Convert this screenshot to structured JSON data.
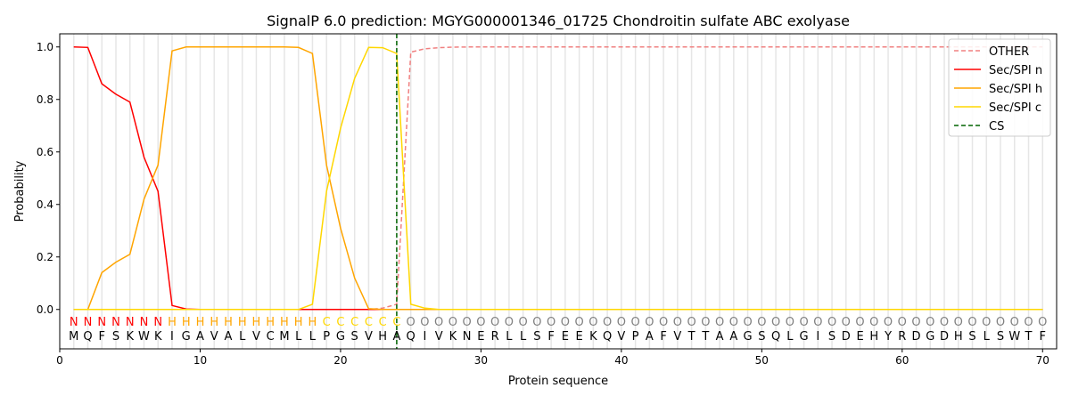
{
  "chart_data": {
    "type": "line",
    "title": "SignalP 6.0 prediction: MGYG000001346_01725 Chondroitin sulfate ABC exolyase",
    "xlabel": "Protein sequence",
    "ylabel": "Probability",
    "xlim": [
      0,
      71
    ],
    "ylim": [
      -0.15,
      1.05
    ],
    "xticks": [
      0,
      10,
      20,
      30,
      40,
      50,
      60,
      70
    ],
    "yticks": [
      0.0,
      0.2,
      0.4,
      0.6,
      0.8,
      1.0
    ],
    "ytick_labels": [
      "0.0",
      "0.2",
      "0.4",
      "0.6",
      "0.8",
      "1.0"
    ],
    "legend_position": "top-right",
    "sequence": [
      "M",
      "Q",
      "F",
      "S",
      "K",
      "W",
      "K",
      "I",
      "G",
      "A",
      "V",
      "A",
      "L",
      "V",
      "C",
      "M",
      "L",
      "L",
      "P",
      "G",
      "S",
      "V",
      "H",
      "A",
      "Q",
      "I",
      "V",
      "K",
      "N",
      "E",
      "R",
      "L",
      "L",
      "S",
      "F",
      "E",
      "E",
      "K",
      "Q",
      "V",
      "P",
      "A",
      "F",
      "V",
      "T",
      "T",
      "A",
      "A",
      "G",
      "S",
      "Q",
      "L",
      "G",
      "I",
      "S",
      "D",
      "E",
      "H",
      "Y",
      "R",
      "D",
      "G",
      "D",
      "H",
      "S",
      "L",
      "S",
      "W",
      "T",
      "F"
    ],
    "labels": [
      "N",
      "N",
      "N",
      "N",
      "N",
      "N",
      "N",
      "H",
      "H",
      "H",
      "H",
      "H",
      "H",
      "H",
      "H",
      "H",
      "H",
      "H",
      "C",
      "C",
      "C",
      "C",
      "C",
      "C",
      "O",
      "O",
      "O",
      "O",
      "O",
      "O",
      "O",
      "O",
      "O",
      "O",
      "O",
      "O",
      "O",
      "O",
      "O",
      "O",
      "O",
      "O",
      "O",
      "O",
      "O",
      "O",
      "O",
      "O",
      "O",
      "O",
      "O",
      "O",
      "O",
      "O",
      "O",
      "O",
      "O",
      "O",
      "O",
      "O",
      "O",
      "O",
      "O",
      "O",
      "O",
      "O",
      "O",
      "O",
      "O",
      "O"
    ],
    "label_colors": {
      "N": "#ff0000",
      "H": "#ffa500",
      "C": "#ffd700",
      "O": "#808080"
    },
    "cs_position": 24,
    "series": [
      {
        "name": "OTHER",
        "color": "#f08080",
        "dash": true,
        "values": [
          0,
          0,
          0,
          0,
          0,
          0,
          0,
          0,
          0,
          0,
          0,
          0,
          0,
          0,
          0,
          0,
          0,
          0,
          0,
          0,
          0,
          0,
          0.005,
          0.02,
          0.98,
          0.993,
          0.997,
          0.999,
          1,
          1,
          1,
          1,
          1,
          1,
          1,
          1,
          1,
          1,
          1,
          1,
          1,
          1,
          1,
          1,
          1,
          1,
          1,
          1,
          1,
          1,
          1,
          1,
          1,
          1,
          1,
          1,
          1,
          1,
          1,
          1,
          1,
          1,
          1,
          1,
          1,
          1,
          1,
          1,
          1,
          1
        ]
      },
      {
        "name": "Sec/SPI n",
        "color": "#ff0000",
        "dash": false,
        "values": [
          1.0,
          0.998,
          0.86,
          0.82,
          0.79,
          0.58,
          0.45,
          0.015,
          0.002,
          0,
          0,
          0,
          0,
          0,
          0,
          0,
          0,
          0,
          0,
          0,
          0,
          0,
          0,
          0,
          0,
          0,
          0,
          0,
          0,
          0,
          0,
          0,
          0,
          0,
          0,
          0,
          0,
          0,
          0,
          0,
          0,
          0,
          0,
          0,
          0,
          0,
          0,
          0,
          0,
          0,
          0,
          0,
          0,
          0,
          0,
          0,
          0,
          0,
          0,
          0,
          0,
          0,
          0,
          0,
          0,
          0,
          0,
          0,
          0,
          0
        ]
      },
      {
        "name": "Sec/SPI h",
        "color": "#ffa500",
        "dash": false,
        "values": [
          0,
          0,
          0.14,
          0.18,
          0.21,
          0.42,
          0.55,
          0.985,
          1,
          1,
          1,
          1,
          1,
          1,
          1,
          1,
          0.998,
          0.975,
          0.55,
          0.31,
          0.12,
          0.003,
          0,
          0,
          0,
          0,
          0,
          0,
          0,
          0,
          0,
          0,
          0,
          0,
          0,
          0,
          0,
          0,
          0,
          0,
          0,
          0,
          0,
          0,
          0,
          0,
          0,
          0,
          0,
          0,
          0,
          0,
          0,
          0,
          0,
          0,
          0,
          0,
          0,
          0,
          0,
          0,
          0,
          0,
          0,
          0,
          0,
          0,
          0,
          0
        ]
      },
      {
        "name": "Sec/SPI c",
        "color": "#ffd700",
        "dash": false,
        "values": [
          0,
          0,
          0,
          0,
          0,
          0,
          0,
          0,
          0,
          0,
          0,
          0,
          0,
          0,
          0,
          0,
          0,
          0.02,
          0.45,
          0.69,
          0.88,
          0.998,
          0.997,
          0.975,
          0.02,
          0.005,
          0,
          0,
          0,
          0,
          0,
          0,
          0,
          0,
          0,
          0,
          0,
          0,
          0,
          0,
          0,
          0,
          0,
          0,
          0,
          0,
          0,
          0,
          0,
          0,
          0,
          0,
          0,
          0,
          0,
          0,
          0,
          0,
          0,
          0,
          0,
          0,
          0,
          0,
          0,
          0,
          0,
          0,
          0,
          0
        ]
      }
    ],
    "cs_legend": {
      "name": "CS",
      "color": "#006400"
    }
  }
}
